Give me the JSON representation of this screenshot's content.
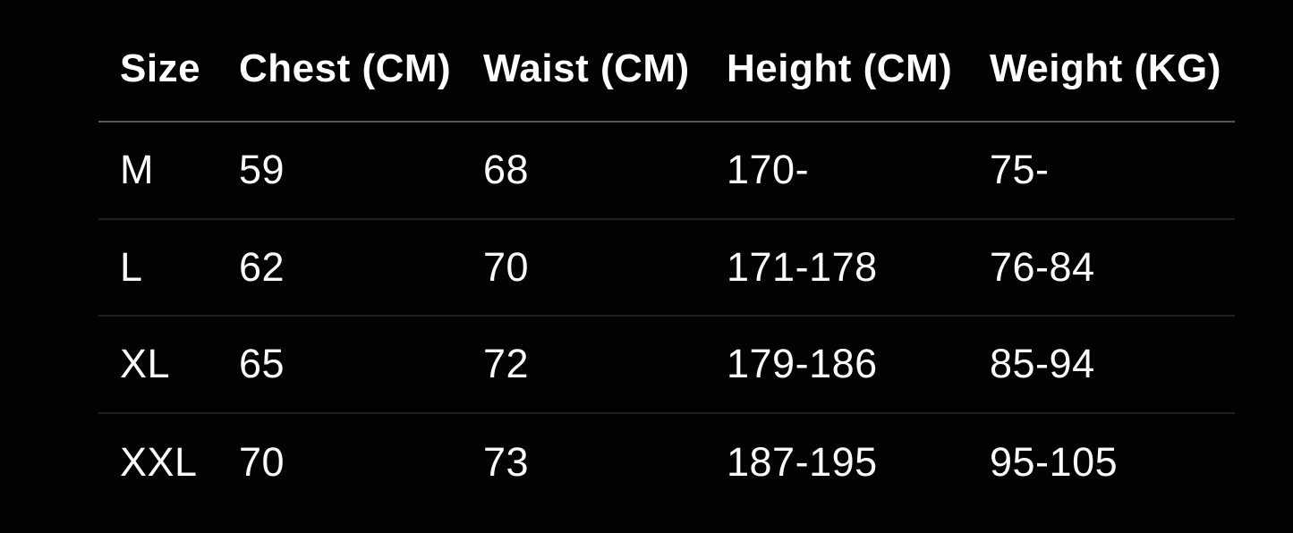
{
  "chart_data": {
    "type": "table",
    "columns": [
      "Size",
      "Chest (CM)",
      "Waist (CM)",
      "Height (CM)",
      "Weight (KG)"
    ],
    "rows": [
      [
        "M",
        "59",
        "68",
        "170-",
        "75-"
      ],
      [
        "L",
        "62",
        "70",
        "171-178",
        "76-84"
      ],
      [
        "XL",
        "65",
        "72",
        "179-186",
        "85-94"
      ],
      [
        "XXL",
        "70",
        "73",
        "187-195",
        "95-105"
      ]
    ],
    "layout": {
      "background": "#000000",
      "header_text_color": "#ffffff",
      "cell_text_color": "#fbfbfb",
      "header_divider_color": "#54565b",
      "row_divider_color": "#1e1f23"
    }
  }
}
